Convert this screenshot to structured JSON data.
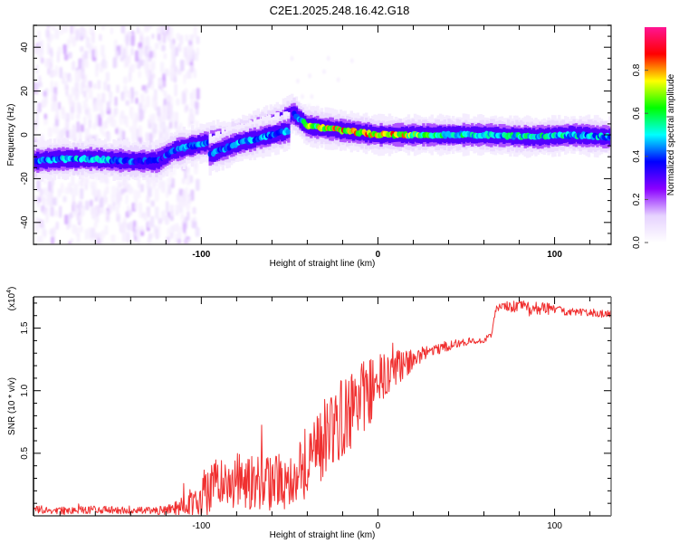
{
  "title": "C2E1.2025.248.16.42.G18",
  "chart_data": [
    {
      "type": "heatmap",
      "name": "spectrogram",
      "xlabel": "Height of straight line (km)",
      "ylabel": "Frequency (Hz)",
      "xlim": [
        -195,
        132
      ],
      "ylim": [
        -50,
        50
      ],
      "xticks": [
        -100,
        0,
        100
      ],
      "yticks": [
        -40,
        -20,
        0,
        20,
        40
      ],
      "colorbar": {
        "label": "Normalized spectral amplitude",
        "range": [
          0.0,
          1.0
        ],
        "ticks": [
          "0.0",
          "0.2",
          "0.4",
          "0.6",
          "0.8"
        ],
        "tick_values": [
          0.0,
          0.2,
          0.4,
          0.6,
          0.8
        ],
        "colormap": [
          "#ffffff",
          "#e6d2ff",
          "#8a00ff",
          "#0000ff",
          "#00ffff",
          "#00ff00",
          "#ffff00",
          "#ff0000",
          "#ff1493"
        ]
      },
      "ridge": {
        "description": "Main signal frequency track",
        "points": [
          {
            "x": -195,
            "y": -12,
            "amp": 0.45
          },
          {
            "x": -180,
            "y": -11,
            "amp": 0.5
          },
          {
            "x": -160,
            "y": -11,
            "amp": 0.55
          },
          {
            "x": -140,
            "y": -12,
            "amp": 0.45
          },
          {
            "x": -125,
            "y": -12,
            "amp": 0.4
          },
          {
            "x": -115,
            "y": -7,
            "amp": 0.45
          },
          {
            "x": -100,
            "y": -4,
            "amp": 0.5
          },
          {
            "x": -85,
            "y": -2,
            "amp": 0.5
          },
          {
            "x": -70,
            "y": 2,
            "amp": 0.5
          },
          {
            "x": -55,
            "y": 6,
            "amp": 0.45
          },
          {
            "x": -48,
            "y": 10,
            "amp": 0.35
          },
          {
            "x": -40,
            "y": 4,
            "amp": 0.7
          },
          {
            "x": -30,
            "y": 3,
            "amp": 0.8
          },
          {
            "x": -20,
            "y": 2,
            "amp": 0.85
          },
          {
            "x": -10,
            "y": 1,
            "amp": 0.85
          },
          {
            "x": 0,
            "y": 0,
            "amp": 0.9
          },
          {
            "x": 10,
            "y": 0,
            "amp": 0.85
          },
          {
            "x": 30,
            "y": 0,
            "amp": 0.65
          },
          {
            "x": 60,
            "y": 0,
            "amp": 0.55
          },
          {
            "x": 90,
            "y": -1,
            "amp": 0.6
          },
          {
            "x": 110,
            "y": 0,
            "amp": 0.55
          },
          {
            "x": 132,
            "y": -1,
            "amp": 0.5
          }
        ],
        "secondary_branch": [
          {
            "x": -95,
            "y": -9,
            "amp": 0.45
          },
          {
            "x": -80,
            "y": -4,
            "amp": 0.5
          },
          {
            "x": -65,
            "y": -1,
            "amp": 0.5
          },
          {
            "x": -50,
            "y": 2,
            "amp": 0.5
          }
        ]
      },
      "noise_region": {
        "x_from": -195,
        "x_to": -110,
        "description": "Scattered low-amplitude noise across all frequencies"
      }
    },
    {
      "type": "line",
      "name": "snr",
      "xlabel": "Height of straight line (km)",
      "ylabel": "SNR (10 * v/v)",
      "y_multiplier": "(x10^4)",
      "y_multiplier_base": "(x10",
      "y_multiplier_exp": "4",
      "xlim": [
        -195,
        132
      ],
      "ylim": [
        0,
        1.75
      ],
      "xticks": [
        -100,
        0,
        100
      ],
      "yticks": [
        0.5,
        1.0,
        1.5
      ],
      "ytick_labels": [
        "0.5",
        "1.0",
        "1.5"
      ],
      "color": "#f03030",
      "series": [
        {
          "name": "SNR",
          "x": [
            -195,
            -180,
            -160,
            -140,
            -125,
            -115,
            -105,
            -100,
            -95,
            -90,
            -80,
            -70,
            -60,
            -50,
            -40,
            -30,
            -20,
            -10,
            0,
            10,
            20,
            30,
            40,
            50,
            60,
            64,
            67,
            70,
            80,
            90,
            100,
            110,
            120,
            132
          ],
          "y": [
            0.05,
            0.04,
            0.05,
            0.04,
            0.04,
            0.06,
            0.12,
            0.18,
            0.22,
            0.25,
            0.28,
            0.27,
            0.26,
            0.3,
            0.45,
            0.62,
            0.78,
            0.92,
            1.05,
            1.18,
            1.25,
            1.32,
            1.36,
            1.39,
            1.41,
            1.43,
            1.66,
            1.67,
            1.67,
            1.66,
            1.65,
            1.63,
            1.62,
            1.61
          ],
          "noise_amplitude": [
            0.03,
            0.03,
            0.03,
            0.03,
            0.03,
            0.05,
            0.12,
            0.18,
            0.2,
            0.22,
            0.22,
            0.22,
            0.22,
            0.25,
            0.3,
            0.32,
            0.32,
            0.3,
            0.25,
            0.15,
            0.08,
            0.05,
            0.04,
            0.03,
            0.03,
            0.03,
            0.03,
            0.04,
            0.05,
            0.06,
            0.04,
            0.03,
            0.03,
            0.03
          ]
        }
      ]
    }
  ]
}
